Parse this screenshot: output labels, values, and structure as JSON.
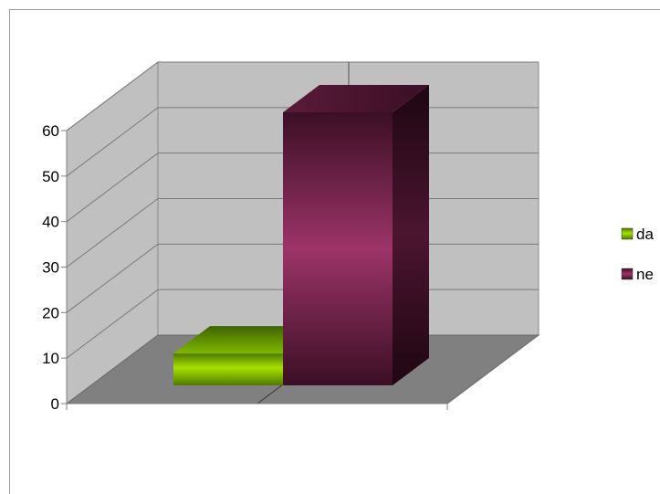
{
  "chart_data": {
    "type": "bar",
    "subtype": "3d-clustered-column",
    "categories": [
      ""
    ],
    "series": [
      {
        "name": "da",
        "values": [
          7
        ],
        "color": "#7fbf00"
      },
      {
        "name": "ne",
        "values": [
          60
        ],
        "color": "#8e2a5c"
      }
    ],
    "ylim": [
      0,
      60
    ],
    "yticks": [
      0,
      10,
      20,
      30,
      40,
      50,
      60
    ],
    "grid": true,
    "legend": "right",
    "title": "",
    "xlabel": "",
    "ylabel": ""
  }
}
